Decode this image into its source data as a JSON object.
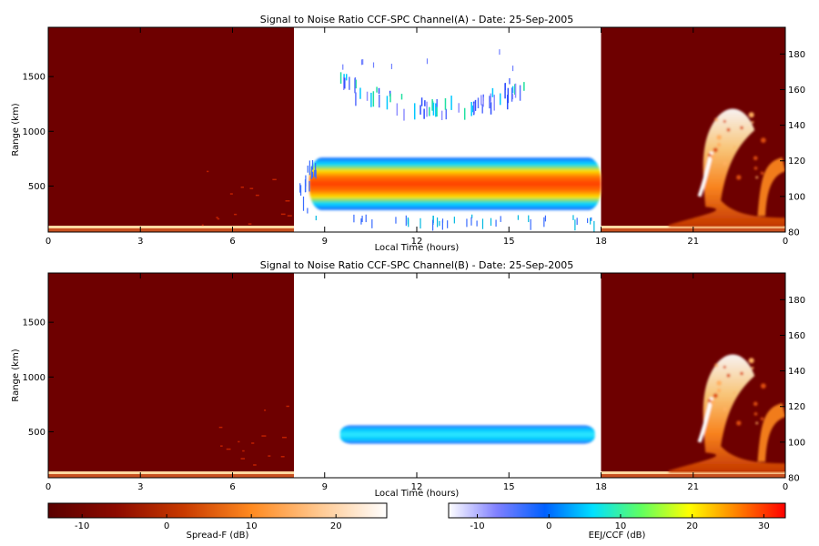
{
  "colors": {
    "background": "#ffffff",
    "spread_f_dark": "#6e0000",
    "axis": "#000000"
  },
  "chart_data": [
    {
      "type": "heatmap",
      "title": "Signal to Noise Ratio CCF-SPC Channel(A) - Date: 25-Sep-2005",
      "xlabel": "Local Time (hours)",
      "ylabel": "Range (km)",
      "xlim": [
        0,
        24
      ],
      "x_ticks": [
        "0",
        "3",
        "6",
        "9",
        "12",
        "15",
        "18",
        "21",
        "0"
      ],
      "x_tick_values": [
        0,
        3,
        6,
        9,
        12,
        15,
        18,
        21,
        24
      ],
      "y_ticks": [
        "500",
        "1000",
        "1500"
      ],
      "y_tick_values": [
        500,
        1000,
        1500
      ],
      "ylim": [
        80,
        1950
      ],
      "right_y_ticks": [
        "80",
        "100",
        "120",
        "140",
        "160",
        "180"
      ],
      "right_y_tick_values": [
        80,
        100,
        120,
        140,
        160,
        180
      ],
      "right_ylim": [
        80,
        195
      ],
      "regions": [
        {
          "name": "Spread-F",
          "x_range": [
            0,
            8
          ],
          "colormap": "spread_f"
        },
        {
          "name": "EEJ/CCF",
          "x_range": [
            8,
            18
          ],
          "colormap": "eej_ccf"
        },
        {
          "name": "Spread-F",
          "x_range": [
            18,
            24
          ],
          "colormap": "spread_f"
        }
      ],
      "features": [
        {
          "name": "CCF echo band",
          "x_range": [
            8.5,
            18
          ],
          "range_km": [
            280,
            760
          ],
          "peak_db": 30
        },
        {
          "name": "upper echo",
          "x_range": [
            9.5,
            15.5
          ],
          "range_km": [
            1100,
            1550
          ],
          "peak_db": 5
        },
        {
          "name": "evening plume",
          "x_range": [
            20.2,
            24
          ],
          "altitude_km_right": [
            85,
            150
          ],
          "peak_db": 25
        }
      ]
    },
    {
      "type": "heatmap",
      "title": "Signal to Noise Ratio CCF-SPC Channel(B) - Date: 25-Sep-2005",
      "xlabel": "Local Time (hours)",
      "ylabel": "Range (km)",
      "xlim": [
        0,
        24
      ],
      "x_ticks": [
        "0",
        "3",
        "6",
        "9",
        "12",
        "15",
        "18",
        "21",
        "0"
      ],
      "x_tick_values": [
        0,
        3,
        6,
        9,
        12,
        15,
        18,
        21,
        24
      ],
      "y_ticks": [
        "500",
        "1000",
        "1500"
      ],
      "y_tick_values": [
        500,
        1000,
        1500
      ],
      "ylim": [
        80,
        1950
      ],
      "right_y_ticks": [
        "80",
        "100",
        "120",
        "140",
        "160",
        "180"
      ],
      "right_y_tick_values": [
        80,
        100,
        120,
        140,
        160,
        180
      ],
      "right_ylim": [
        80,
        195
      ],
      "regions": [
        {
          "name": "Spread-F",
          "x_range": [
            0,
            8
          ],
          "colormap": "spread_f"
        },
        {
          "name": "EEJ/CCF",
          "x_range": [
            8,
            18
          ],
          "colormap": "eej_ccf"
        },
        {
          "name": "Spread-F",
          "x_range": [
            18,
            24
          ],
          "colormap": "spread_f"
        }
      ],
      "features": [
        {
          "name": "CCF echo band",
          "x_range": [
            9.5,
            17.8
          ],
          "range_km": [
            390,
            560
          ],
          "peak_db": 2
        },
        {
          "name": "evening plume",
          "x_range": [
            20.2,
            24
          ],
          "altitude_km_right": [
            85,
            150
          ],
          "peak_db": 25
        }
      ]
    }
  ],
  "colorbars": [
    {
      "label": "Spread-F (dB)",
      "range": [
        -14,
        26
      ],
      "ticks": [
        "-10",
        "0",
        "10",
        "20"
      ],
      "tick_values": [
        -10,
        0,
        10,
        20
      ],
      "stops": [
        "#5a0000",
        "#8c0a00",
        "#c83a00",
        "#ff8a20",
        "#ffc890",
        "#ffffff"
      ]
    },
    {
      "label": "EEJ/CCF (dB)",
      "range": [
        -14,
        33
      ],
      "ticks": [
        "-10",
        "0",
        "10",
        "20",
        "30"
      ],
      "tick_values": [
        -10,
        0,
        10,
        20,
        30
      ],
      "stops": [
        "#ffffff",
        "#8080ff",
        "#0060ff",
        "#00e0ff",
        "#60ff60",
        "#ffff00",
        "#ff8000",
        "#ff0000"
      ]
    }
  ]
}
